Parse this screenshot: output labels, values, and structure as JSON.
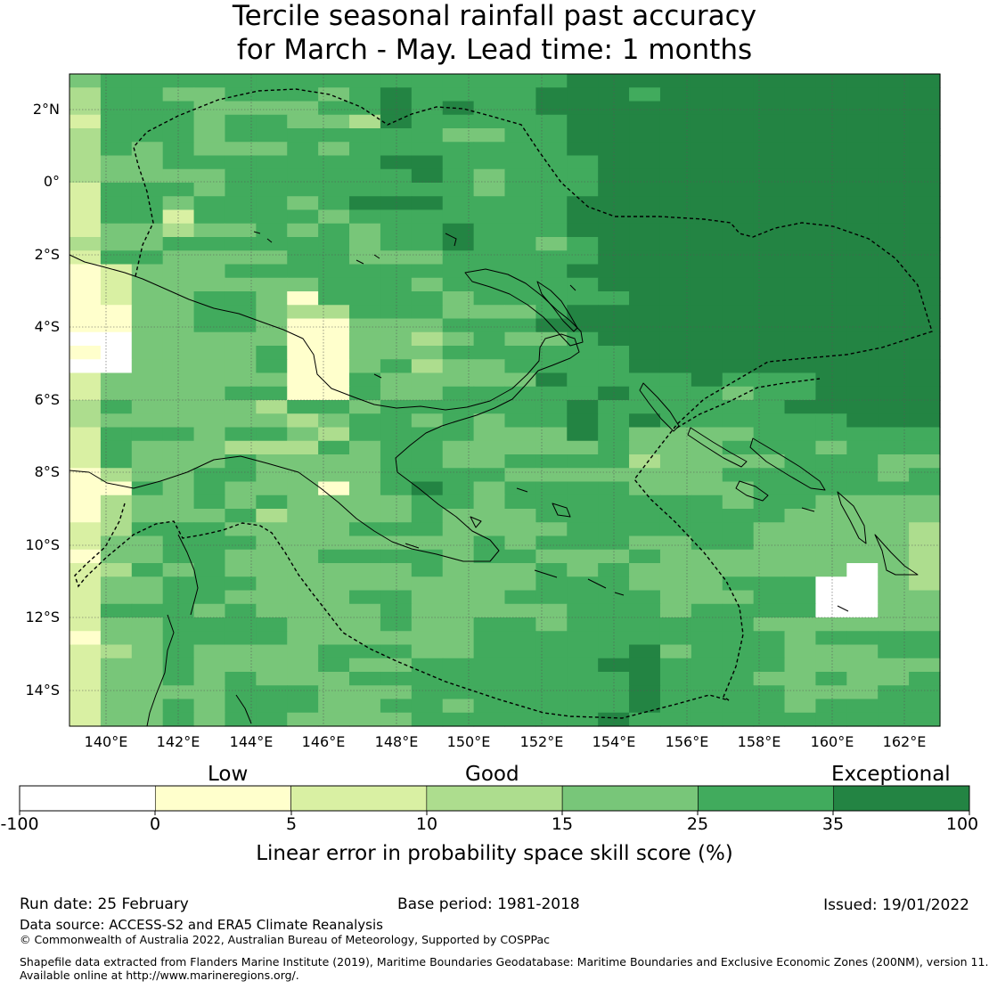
{
  "title": {
    "line1": "Tercile seasonal rainfall past accuracy",
    "line2": "for March - May. Lead time: 1 months"
  },
  "map": {
    "lat_labels": [
      "2°N",
      "0°",
      "2°S",
      "4°S",
      "6°S",
      "8°S",
      "10°S",
      "12°S",
      "14°S"
    ],
    "lon_labels": [
      "140°E",
      "142°E",
      "144°E",
      "146°E",
      "148°E",
      "150°E",
      "152°E",
      "154°E",
      "156°E",
      "158°E",
      "160°E",
      "162°E"
    ],
    "skill_grid": [
      "5666666666666666777777777777",
      "4665566656766667776777777777",
      "4666555566767667777777777777",
      "3666566554766666777788777777",
      "4666566666665566777888877777",
      "4656555656666666777788888888",
      "4556666666776666677888888888",
      "4555566666676566677888888888",
      "3666566666666566677888888888",
      "3665666567776666777888888888",
      "3663666656666666777888888888",
      "3554556565667666777888888888",
      "4556666665667665677888888888",
      "3665555665556666677888888888",
      "2355566666666666777888888888",
      "2355555566656666677888888888",
      "2355665266665666667888888888",
      "2255665446665556777888888888",
      "2255665225556667778877777777",
      "1155555225545655677788777777",
      "2155556225556666667777777777",
      "1155556225645566667777777777",
      "3555555226555557666676667777",
      "3555566226556666676665667777",
      "4655554665666666766666677777",
      "4555555456656566767666666777",
      "3666566546666555765555666666",
      "3655544465665555565556665666",
      "3655565555665566664555566655",
      "2455665555666655555556666656",
      "2265655525676566665555666666",
      "2455656555566566666665665555",
      "2455564555565556666666655555",
      "3466655556665555666666555554",
      "3556665555555656665566555554",
      "2556655566665665556555555554",
      "3465655555565556565555555154",
      "3556665555555556665556661154",
      "3556655556655566666555661155",
      "3666565555655555666566661155",
      "3556666555655665666666555555",
      "2556666555555666666666656666",
      "3456555566655666667566655566",
      "3556555565566666677666655555",
      "3556565556666666667666556556",
      "3555566655566666667666655566",
      "3556566655665666667666656666",
      "3556566555566666676666666666"
    ]
  },
  "legend": {
    "categories": {
      "low": "Low",
      "good": "Good",
      "exceptional": "Exceptional"
    },
    "ticks": [
      "-100",
      "0",
      "5",
      "10",
      "15",
      "25",
      "35",
      "100"
    ],
    "bins": [
      {
        "range": "-100 to 0",
        "color": "#ffffff"
      },
      {
        "range": "0 to 5",
        "color": "#ffffcc"
      },
      {
        "range": "5 to 10",
        "color": "#d9f0a3"
      },
      {
        "range": "10 to 15",
        "color": "#addd8e"
      },
      {
        "range": "15 to 25",
        "color": "#78c679"
      },
      {
        "range": "25 to 35",
        "color": "#41ab5d"
      },
      {
        "range": "35 to 100",
        "color": "#238443"
      }
    ],
    "axis_title": "Linear error in probability space skill score (%)"
  },
  "footer": {
    "run_date": "Run date: 25 February",
    "base_period": "Base period: 1981-2018",
    "issued": "Issued: 19/01/2022",
    "data_source": "Data source: ACCESS-S2 and ERA5 Climate Reanalysis",
    "copyright": "© Commonwealth of Australia 2022, Australian Bureau of Meteorology, Supported by COSPPac",
    "shapefile_line1": "Shapefile data extracted from Flanders Marine Institute (2019), Maritime Boundaries Geodatabase: Maritime Boundaries and Exclusive Economic Zones (200NM), version 11.",
    "shapefile_line2": "Available online at http://www.marineregions.org/."
  }
}
